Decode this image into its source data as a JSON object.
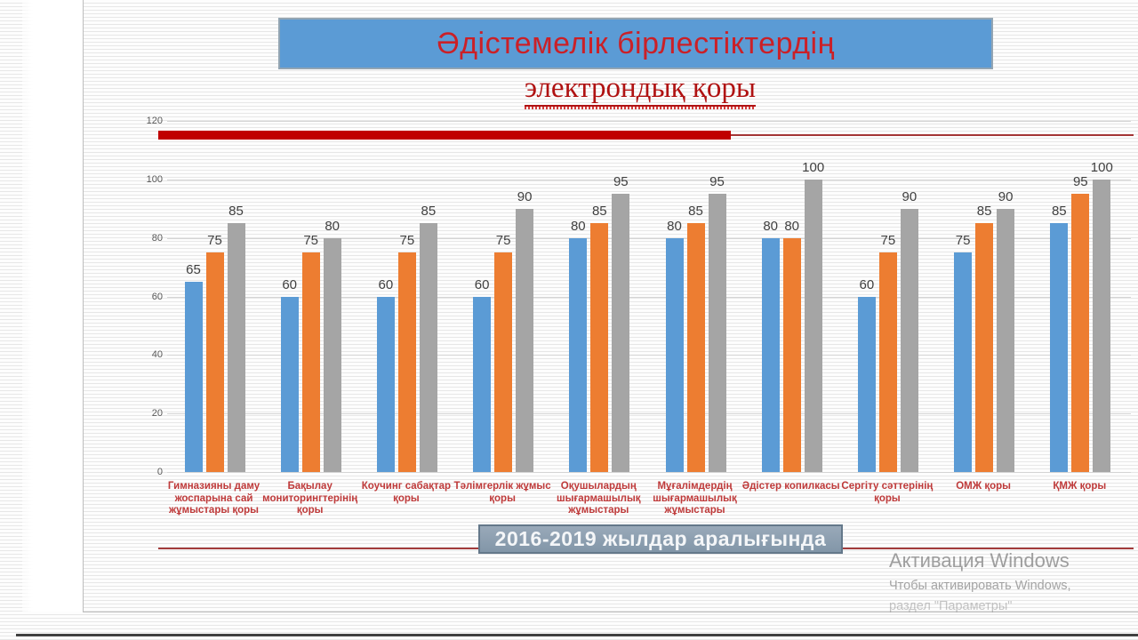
{
  "slide": {
    "title": "Әдістемелік бірлестіктердің",
    "subtitle": "электрондық қоры",
    "caption": "2016-2019 жылдар аралығында"
  },
  "watermark": {
    "line1": "Активация Windows",
    "line2": "Чтобы активировать Windows,",
    "line3": "раздел \"Параметры\""
  },
  "colors": {
    "title_box_fill": "#5b9bd5",
    "title_text_red": "#cb2027",
    "category_label_red": "#bf3a3a",
    "decor_bar_red": "#c00000",
    "caption_box_fill": "#8e9fb0",
    "series_blue": "#5b9bd5",
    "series_orange": "#ed7d31",
    "series_gray": "#a5a5a5"
  },
  "chart_data": {
    "type": "bar",
    "title": "Әдістемелік бірлестіктердің электрондық қоры",
    "xlabel": "",
    "ylabel": "",
    "ylim": [
      0,
      120
    ],
    "yticks": [
      0,
      20,
      40,
      60,
      80,
      100,
      120
    ],
    "grid": true,
    "legend": "none",
    "categories": [
      "Гимназияны даму жоспарына сай жұмыстары қоры",
      "Бақылау мониторингтерінің қоры",
      "Коучинг сабақтар қоры",
      "Тәлімгерлік жұмыс қоры",
      "Оқушылардың шығармашылық жұмыстары",
      "Мұғалімдердің шығармашылық жұмыстары",
      "Әдістер копилкасы",
      "Сергіту сәттерінің қоры",
      "ОМЖ қоры",
      "ҚМЖ қоры"
    ],
    "series": [
      {
        "name": "blue",
        "color": "#5b9bd5",
        "values": [
          65,
          60,
          60,
          60,
          80,
          80,
          80,
          60,
          75,
          85
        ]
      },
      {
        "name": "orange",
        "color": "#ed7d31",
        "values": [
          75,
          75,
          75,
          75,
          85,
          85,
          80,
          75,
          85,
          95
        ]
      },
      {
        "name": "gray",
        "color": "#a5a5a5",
        "values": [
          85,
          80,
          85,
          90,
          95,
          95,
          100,
          90,
          90,
          100
        ]
      }
    ],
    "data_labels": true
  }
}
